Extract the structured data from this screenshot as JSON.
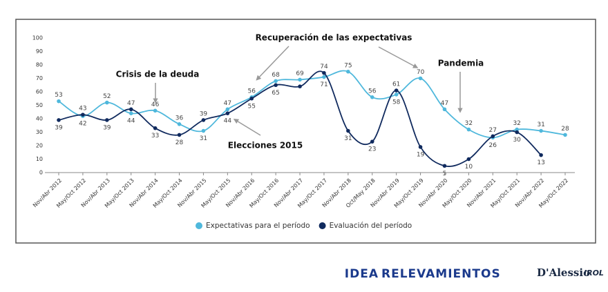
{
  "chart_data": {
    "type": "line",
    "categories": [
      "Nov/Abr 2012",
      "May/Oct 2012",
      "Nov/Abr 2013",
      "May/Oct 2013",
      "Nov/Abr 2014",
      "May/Oct 2014",
      "Nov/Abr 2015",
      "May/Oct 2015",
      "Nov/Abr 2016",
      "May/Oct 2016",
      "Nov/Abr 2017",
      "May/Oct 2017",
      "Nov/Abr 2018",
      "Oct/May 2018",
      "Nov/Abr 2019",
      "May/Oct 2019",
      "Nov/Abr 2020",
      "May/Oct 2020",
      "Nov/Abr 2021",
      "May/Oct 2021",
      "Nov/Abr 2022",
      "May/Oct 2022"
    ],
    "series": [
      {
        "name": "Expectativas para el período",
        "color": "#4fb8dc",
        "values": [
          53,
          42,
          52,
          44,
          46,
          36,
          31,
          47,
          56,
          68,
          69,
          71,
          75,
          56,
          58,
          70,
          47,
          32,
          26,
          32,
          31,
          28
        ]
      },
      {
        "name": "Evaluación del período",
        "color": "#102a5e",
        "values": [
          39,
          43,
          39,
          47,
          33,
          28,
          39,
          44,
          55,
          65,
          64,
          74,
          31,
          23,
          61,
          19,
          5,
          10,
          27,
          30,
          13,
          null
        ],
        "value_labels": [
          "39",
          "43",
          "39",
          "47",
          "33",
          "28",
          "39",
          "44",
          "55",
          "65",
          null,
          "74",
          "31",
          "23",
          "61",
          "19",
          "5",
          "10",
          "27",
          "30",
          "13",
          null
        ]
      }
    ],
    "ylim": [
      0,
      100
    ],
    "yticks": [
      0,
      10,
      20,
      30,
      40,
      50,
      60,
      70,
      80,
      90,
      100
    ],
    "grid": false,
    "legend": "bottom",
    "annotations": [
      "Crisis de la deuda",
      "Recuperación de las expectativas",
      "Pandemia",
      "Elecciones 2015"
    ],
    "footer": {
      "logo_left_a": "IDEA",
      "logo_left_b": "RELEVAMIENTOS",
      "logo_right_a": "D'Alessio",
      "logo_right_b": "IROL"
    }
  }
}
